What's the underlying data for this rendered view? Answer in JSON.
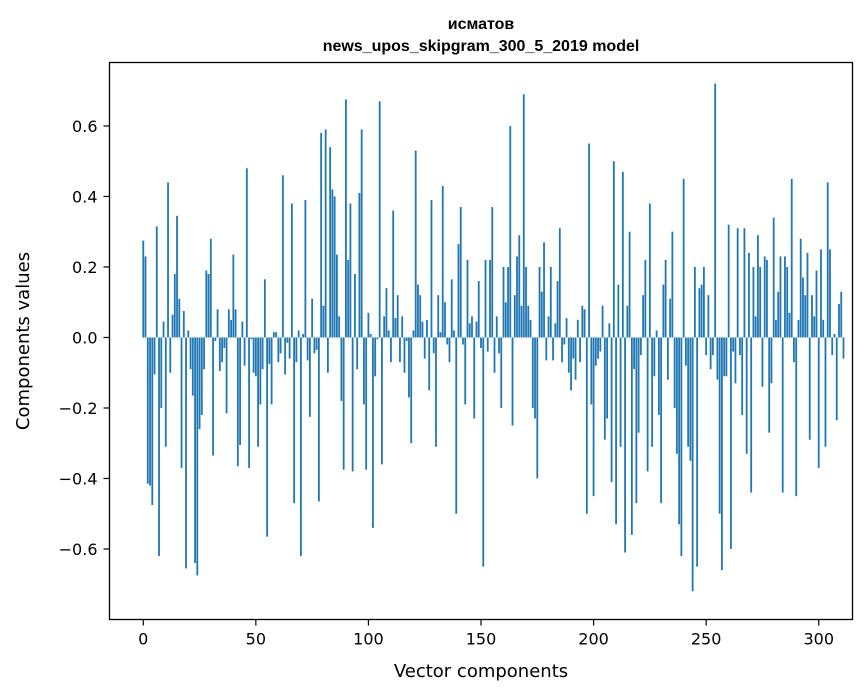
{
  "chart_data": {
    "type": "bar",
    "title_line1": "исматов",
    "title_line2": "news_upos_skipgram_300_5_2019 model",
    "xlabel": "Vector components",
    "ylabel": "Components values",
    "xlim": [
      -15,
      315
    ],
    "ylim": [
      -0.8,
      0.78
    ],
    "xticks": [
      0,
      50,
      100,
      150,
      200,
      250,
      300
    ],
    "xtick_labels": [
      "0",
      "50",
      "100",
      "150",
      "200",
      "250",
      "300"
    ],
    "yticks": [
      -0.6,
      -0.4,
      -0.2,
      0.0,
      0.2,
      0.4,
      0.6
    ],
    "ytick_labels": [
      "−0.6",
      "−0.4",
      "−0.2",
      "0.0",
      "0.2",
      "0.4",
      "0.6"
    ],
    "bar_color": "#1f77b4",
    "grid": false,
    "values": [
      0.275,
      0.23,
      -0.415,
      -0.42,
      -0.475,
      -0.105,
      0.315,
      -0.62,
      -0.2,
      0.045,
      -0.31,
      0.44,
      -0.1,
      0.065,
      0.18,
      0.345,
      0.11,
      -0.37,
      0.075,
      -0.655,
      0.02,
      -0.09,
      -0.165,
      -0.64,
      -0.675,
      -0.26,
      -0.22,
      -0.09,
      0.19,
      0.18,
      0.28,
      -0.335,
      -0.01,
      0.08,
      -0.095,
      -0.07,
      -0.03,
      -0.215,
      0.08,
      0.05,
      0.235,
      0.08,
      -0.365,
      -0.305,
      0.045,
      -0.08,
      0.48,
      -0.37,
      -0.005,
      -0.1,
      -0.11,
      -0.31,
      -0.19,
      -0.09,
      0.165,
      -0.565,
      -0.075,
      -0.19,
      0.015,
      0.015,
      -0.07,
      -0.045,
      0.46,
      -0.105,
      -0.015,
      -0.06,
      0.38,
      -0.47,
      -0.07,
      0.02,
      -0.62,
      0.01,
      0.39,
      -0.065,
      -0.225,
      0.11,
      -0.045,
      -0.035,
      -0.465,
      0.58,
      0.09,
      0.59,
      -0.1,
      0.54,
      0.42,
      0.4,
      0.235,
      0.06,
      -0.18,
      -0.375,
      0.675,
      0.22,
      0.38,
      -0.38,
      0.18,
      -0.09,
      0.41,
      0.59,
      -0.19,
      -0.375,
      0.07,
      0.01,
      -0.54,
      -0.11,
      -0.005,
      0.67,
      -0.36,
      0.06,
      0.14,
      0.02,
      -0.07,
      0.36,
      0.055,
      0.12,
      -0.07,
      0.06,
      -0.1,
      -0.01,
      -0.17,
      -0.3,
      0.02,
      0.53,
      0.15,
      0.12,
      0.045,
      -0.06,
      0.05,
      -0.15,
      0.39,
      -0.045,
      -0.31,
      0.12,
      0.015,
      0.43,
      0.1,
      -0.02,
      -0.07,
      0.165,
      0.02,
      -0.5,
      0.265,
      0.37,
      -0.02,
      -0.19,
      0.22,
      0.04,
      0.06,
      -0.23,
      0.045,
      0.16,
      -0.03,
      -0.65,
      0.22,
      -0.04,
      0.22,
      0.37,
      -0.1,
      0.06,
      -0.045,
      -0.2,
      0.2,
      0.1,
      0.2,
      0.6,
      -0.25,
      0.12,
      0.23,
      0.29,
      0.09,
      0.69,
      0.2,
      0.09,
      0.05,
      -0.2,
      -0.23,
      -0.4,
      0.2,
      0.13,
      0.27,
      -0.065,
      0.06,
      0.2,
      -0.065,
      0.04,
      0.16,
      0.31,
      -0.07,
      -0.02,
      0.055,
      -0.1,
      -0.15,
      -0.06,
      -0.12,
      0.05,
      -0.07,
      0.09,
      0.08,
      -0.5,
      0.55,
      -0.19,
      -0.45,
      -0.08,
      -0.06,
      -0.04,
      0.09,
      -0.29,
      -0.23,
      0.04,
      -0.41,
      0.5,
      -0.53,
      0.15,
      -0.31,
      0.47,
      -0.61,
      0.09,
      0.3,
      -0.56,
      -0.09,
      -0.47,
      -0.27,
      -0.05,
      0.12,
      0.22,
      -0.38,
      0.38,
      -0.31,
      -0.11,
      0.02,
      -0.22,
      -0.47,
      0.15,
      0.22,
      -0.12,
      0.11,
      0.3,
      -0.2,
      -0.33,
      -0.53,
      -0.62,
      0.45,
      -0.08,
      -0.31,
      -0.35,
      -0.72,
      0.2,
      -0.65,
      0.14,
      0.15,
      0.2,
      -0.05,
      0.12,
      -0.09,
      -0.05,
      0.72,
      -0.12,
      -0.5,
      -0.66,
      -0.11,
      -0.11,
      0.32,
      -0.6,
      -0.04,
      -0.13,
      0.31,
      -0.05,
      -0.22,
      0.31,
      -0.33,
      0.24,
      -0.44,
      0.2,
      0.06,
      0.29,
      0.2,
      -0.14,
      0.23,
      0.22,
      -0.27,
      -0.13,
      0.34,
      0.05,
      0.13,
      0.23,
      -0.44,
      0.23,
      0.2,
      0.07,
      0.45,
      -0.07,
      -0.45,
      0.05,
      0.28,
      0.17,
      0.12,
      0.24,
      -0.29,
      0.12,
      0.06,
      0.19,
      -0.37,
      0.25,
      0.05,
      -0.31,
      0.44,
      0.25,
      -0.05,
      0.01,
      -0.235,
      0.095,
      0.13,
      -0.06
    ]
  }
}
